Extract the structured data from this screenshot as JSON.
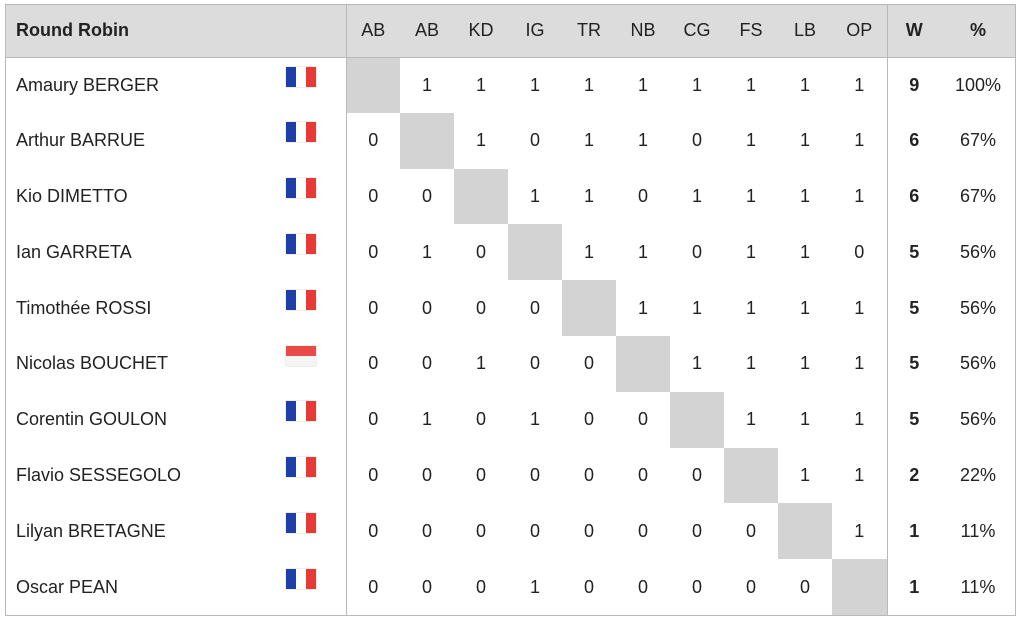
{
  "table": {
    "title": "Round Robin",
    "columns": [
      "AB",
      "AB",
      "KD",
      "IG",
      "TR",
      "NB",
      "CG",
      "FS",
      "LB",
      "OP"
    ],
    "w_label": "W",
    "pct_label": "%",
    "rows": [
      {
        "name": "Amaury BERGER",
        "flag": "flag-fr",
        "results": [
          "",
          "1",
          "1",
          "1",
          "1",
          "1",
          "1",
          "1",
          "1",
          "1"
        ],
        "w": "9",
        "pct": "100%"
      },
      {
        "name": "Arthur BARRUE",
        "flag": "flag-fr",
        "results": [
          "0",
          "",
          "1",
          "0",
          "1",
          "1",
          "0",
          "1",
          "1",
          "1"
        ],
        "w": "6",
        "pct": "67%"
      },
      {
        "name": "Kio DIMETTO",
        "flag": "flag-fr",
        "results": [
          "0",
          "0",
          "",
          "1",
          "1",
          "0",
          "1",
          "1",
          "1",
          "1"
        ],
        "w": "6",
        "pct": "67%"
      },
      {
        "name": "Ian GARRETA",
        "flag": "flag-fr",
        "results": [
          "0",
          "1",
          "0",
          "",
          "1",
          "1",
          "0",
          "1",
          "1",
          "0"
        ],
        "w": "5",
        "pct": "56%"
      },
      {
        "name": "Timothée ROSSI",
        "flag": "flag-fr",
        "results": [
          "0",
          "0",
          "0",
          "0",
          "",
          "1",
          "1",
          "1",
          "1",
          "1"
        ],
        "w": "5",
        "pct": "56%"
      },
      {
        "name": "Nicolas BOUCHET",
        "flag": "flag-mc",
        "results": [
          "0",
          "0",
          "1",
          "0",
          "0",
          "",
          "1",
          "1",
          "1",
          "1"
        ],
        "w": "5",
        "pct": "56%"
      },
      {
        "name": "Corentin GOULON",
        "flag": "flag-fr",
        "results": [
          "0",
          "1",
          "0",
          "1",
          "0",
          "0",
          "",
          "1",
          "1",
          "1"
        ],
        "w": "5",
        "pct": "56%"
      },
      {
        "name": "Flavio SESSEGOLO",
        "flag": "flag-fr",
        "results": [
          "0",
          "0",
          "0",
          "0",
          "0",
          "0",
          "0",
          "",
          "1",
          "1"
        ],
        "w": "2",
        "pct": "22%"
      },
      {
        "name": "Lilyan BRETAGNE",
        "flag": "flag-fr",
        "results": [
          "0",
          "0",
          "0",
          "0",
          "0",
          "0",
          "0",
          "0",
          "",
          "1"
        ],
        "w": "1",
        "pct": "11%"
      },
      {
        "name": "Oscar PEAN",
        "flag": "flag-fr",
        "results": [
          "0",
          "0",
          "0",
          "1",
          "0",
          "0",
          "0",
          "0",
          "0",
          ""
        ],
        "w": "1",
        "pct": "11%"
      }
    ]
  }
}
